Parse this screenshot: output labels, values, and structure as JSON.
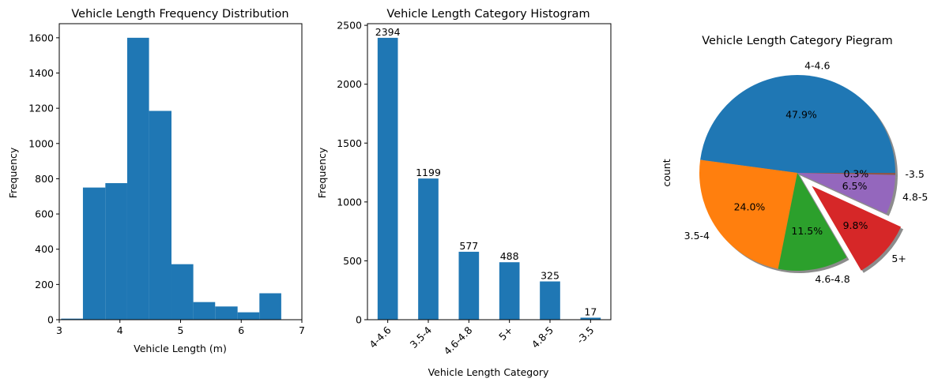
{
  "chart_data": [
    {
      "type": "bar",
      "title": "Vehicle Length Frequency Distribution",
      "xlabel": "Vehicle Length (m)",
      "ylabel": "Frequency",
      "xlim": [
        3,
        7
      ],
      "ylim": [
        0,
        1680
      ],
      "xticks": [
        "3",
        "4",
        "5",
        "6",
        "7"
      ],
      "yticks": [
        "0",
        "200",
        "400",
        "600",
        "800",
        "1000",
        "1200",
        "1400",
        "1600"
      ],
      "bins": [
        {
          "x0": 3.03,
          "x1": 3.39,
          "count": 6
        },
        {
          "x0": 3.39,
          "x1": 3.76,
          "count": 750
        },
        {
          "x0": 3.76,
          "x1": 4.12,
          "count": 775
        },
        {
          "x0": 4.12,
          "x1": 4.48,
          "count": 1600
        },
        {
          "x0": 4.48,
          "x1": 4.85,
          "count": 1185
        },
        {
          "x0": 4.85,
          "x1": 5.21,
          "count": 315
        },
        {
          "x0": 5.21,
          "x1": 5.57,
          "count": 100
        },
        {
          "x0": 5.57,
          "x1": 5.94,
          "count": 75
        },
        {
          "x0": 5.94,
          "x1": 6.3,
          "count": 42
        },
        {
          "x0": 6.3,
          "x1": 6.66,
          "count": 150
        }
      ],
      "color": "#1f77b4"
    },
    {
      "type": "bar",
      "title": "Vehicle Length Category Histogram",
      "xlabel": "Vehicle Length Category",
      "ylabel": "Frequency",
      "ylim": [
        0,
        2514
      ],
      "yticks": [
        "0",
        "500",
        "1000",
        "1500",
        "2000",
        "2500"
      ],
      "categories": [
        "4-4.6",
        "3.5-4",
        "4.6-4.8",
        "5+",
        "4.8-5",
        "-3.5"
      ],
      "values": [
        2394,
        1199,
        577,
        488,
        325,
        17
      ],
      "data_labels": [
        "2394",
        "1199",
        "577",
        "488",
        "325",
        "17"
      ],
      "color": "#1f77b4"
    },
    {
      "type": "pie",
      "title": "Vehicle Length Category Piegram",
      "ylabel": "count",
      "labels": [
        "4-4.6",
        "3.5-4",
        "4.6-4.8",
        "5+",
        "4.8-5",
        "-3.5"
      ],
      "values": [
        2394,
        1199,
        577,
        488,
        325,
        17
      ],
      "pct_labels": [
        "47.9%",
        "24.0%",
        "11.5%",
        "9.8%",
        "6.5%",
        "0.3%"
      ],
      "colors": [
        "#1f77b4",
        "#ff7f0e",
        "#2ca02c",
        "#d62728",
        "#9467bd",
        "#8c564b"
      ],
      "exploded": "5+",
      "shadow": true
    }
  ]
}
